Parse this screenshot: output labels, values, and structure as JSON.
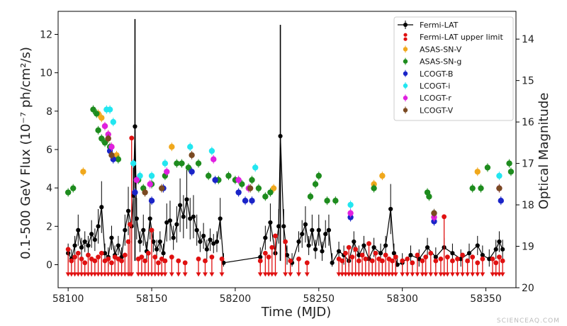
{
  "watermark": "SCIENCEAQ.COM",
  "chart_data": {
    "type": "scatter",
    "xlabel": "Time (MJD)",
    "ylabel_left": "0.1-500 GeV Flux (10⁻⁷ ph/cm²/s)",
    "ylabel_right": "Optical Magnitude",
    "xlim": [
      58094,
      58368
    ],
    "ylim_left": [
      -1.2,
      13.2
    ],
    "ylim_right": [
      20,
      13.33
    ],
    "x_ticks": [
      58100,
      58150,
      58200,
      58250,
      58300,
      58350
    ],
    "y_ticks_left": [
      0,
      2,
      4,
      6,
      8,
      10,
      12
    ],
    "y_ticks_right": [
      14,
      15,
      16,
      17,
      18,
      19,
      20
    ],
    "legend_position": "top-right",
    "series": [
      {
        "name": "Fermi-LAT",
        "color": "#000000",
        "axis": "left",
        "kind": "line-points",
        "points": [
          [
            58100,
            0.6
          ],
          [
            58102,
            0.3
          ],
          [
            58104,
            1.0
          ],
          [
            58106,
            1.8
          ],
          [
            58108,
            0.9
          ],
          [
            58110,
            1.2
          ],
          [
            58112,
            1.0
          ],
          [
            58114,
            1.6
          ],
          [
            58116,
            1.3
          ],
          [
            58118,
            2.0
          ],
          [
            58120,
            3.0
          ],
          [
            58122,
            0.6
          ],
          [
            58124,
            0.4
          ],
          [
            58126,
            1.4
          ],
          [
            58128,
            0.5
          ],
          [
            58130,
            1.0
          ],
          [
            58132,
            0.4
          ],
          [
            58134,
            1.8
          ],
          [
            58136,
            2.8
          ],
          [
            58138,
            2.0
          ],
          [
            58139,
            3.6
          ],
          [
            58140,
            7.2
          ],
          [
            58141,
            2.4
          ],
          [
            58143,
            1.2
          ],
          [
            58145,
            1.8
          ],
          [
            58147,
            0.7
          ],
          [
            58149,
            2.4
          ],
          [
            58151,
            1.2
          ],
          [
            58153,
            0.8
          ],
          [
            58155,
            1.2
          ],
          [
            58157,
            0.6
          ],
          [
            58159,
            2.2
          ],
          [
            58161,
            2.3
          ],
          [
            58163,
            1.4
          ],
          [
            58165,
            2.1
          ],
          [
            58167,
            3.1
          ],
          [
            58169,
            2.5
          ],
          [
            58171,
            3.4
          ],
          [
            58173,
            2.4
          ],
          [
            58175,
            2.5
          ],
          [
            58177,
            1.8
          ],
          [
            58179,
            1.2
          ],
          [
            58181,
            1.5
          ],
          [
            58183,
            0.8
          ],
          [
            58185,
            1.3
          ],
          [
            58187,
            1.1
          ],
          [
            58189,
            1.2
          ],
          [
            58191,
            2.4
          ],
          [
            58193,
            0.1
          ],
          [
            58215,
            0.4
          ],
          [
            58218,
            1.4
          ],
          [
            58221,
            2.2
          ],
          [
            58224,
            0.6
          ],
          [
            58226,
            2.0
          ],
          [
            58227,
            6.7
          ],
          [
            58229,
            2.0
          ],
          [
            58231,
            0.5
          ],
          [
            58234,
            0.1
          ],
          [
            58238,
            1.2
          ],
          [
            58240,
            1.6
          ],
          [
            58242,
            2.1
          ],
          [
            58244,
            1.0
          ],
          [
            58246,
            1.8
          ],
          [
            58248,
            0.8
          ],
          [
            58250,
            1.8
          ],
          [
            58252,
            0.7
          ],
          [
            58254,
            1.6
          ],
          [
            58256,
            1.8
          ],
          [
            58258,
            0.1
          ],
          [
            58262,
            0.7
          ],
          [
            58265,
            0.5
          ],
          [
            58268,
            0.2
          ],
          [
            58271,
            1.2
          ],
          [
            58274,
            0.5
          ],
          [
            58277,
            1.0
          ],
          [
            58280,
            0.3
          ],
          [
            58283,
            0.9
          ],
          [
            58287,
            0.6
          ],
          [
            58290,
            1.0
          ],
          [
            58293,
            2.9
          ],
          [
            58295,
            0.6
          ],
          [
            58297,
            0.0
          ],
          [
            58300,
            0.1
          ],
          [
            58305,
            0.5
          ],
          [
            58310,
            0.3
          ],
          [
            58315,
            0.9
          ],
          [
            58320,
            0.4
          ],
          [
            58325,
            0.9
          ],
          [
            58330,
            0.6
          ],
          [
            58335,
            0.3
          ],
          [
            58340,
            0.6
          ],
          [
            58345,
            1.0
          ],
          [
            58348,
            0.5
          ],
          [
            58352,
            0.3
          ],
          [
            58356,
            0.8
          ],
          [
            58358,
            1.2
          ],
          [
            58360,
            0.8
          ]
        ],
        "spikes": [
          [
            58140,
            12.8
          ],
          [
            58227,
            12.5
          ]
        ]
      },
      {
        "name": "Fermi-LAT upper limit",
        "color": "#e01010",
        "axis": "left",
        "kind": "upper-limit",
        "points": [
          [
            58100,
            0.8
          ],
          [
            58102,
            0.2
          ],
          [
            58104,
            0.4
          ],
          [
            58106,
            0.6
          ],
          [
            58108,
            0.3
          ],
          [
            58110,
            0.1
          ],
          [
            58112,
            0.5
          ],
          [
            58114,
            0.3
          ],
          [
            58116,
            0.2
          ],
          [
            58118,
            0.4
          ],
          [
            58120,
            0.6
          ],
          [
            58122,
            0.2
          ],
          [
            58124,
            0.3
          ],
          [
            58126,
            0.1
          ],
          [
            58128,
            0.4
          ],
          [
            58130,
            0.3
          ],
          [
            58132,
            0.2
          ],
          [
            58134,
            0.5
          ],
          [
            58136,
            1.2
          ],
          [
            58137,
            2.1
          ],
          [
            58138,
            6.6
          ],
          [
            58142,
            0.3
          ],
          [
            58144,
            0.4
          ],
          [
            58146,
            0.2
          ],
          [
            58148,
            0.6
          ],
          [
            58150,
            1.8
          ],
          [
            58152,
            0.4
          ],
          [
            58154,
            0.1
          ],
          [
            58156,
            0.3
          ],
          [
            58158,
            0.2
          ],
          [
            58162,
            0.4
          ],
          [
            58166,
            0.2
          ],
          [
            58170,
            0.1
          ],
          [
            58178,
            0.3
          ],
          [
            58182,
            0.2
          ],
          [
            58186,
            0.4
          ],
          [
            58192,
            0.3
          ],
          [
            58215,
            0.2
          ],
          [
            58218,
            0.6
          ],
          [
            58220,
            0.4
          ],
          [
            58222,
            0.9
          ],
          [
            58224,
            1.5
          ],
          [
            58230,
            1.2
          ],
          [
            58233,
            0.2
          ],
          [
            58238,
            0.3
          ],
          [
            58243,
            0.1
          ],
          [
            58262,
            0.3
          ],
          [
            58264,
            0.2
          ],
          [
            58266,
            0.6
          ],
          [
            58268,
            0.9
          ],
          [
            58270,
            0.4
          ],
          [
            58272,
            0.8
          ],
          [
            58274,
            0.2
          ],
          [
            58276,
            0.5
          ],
          [
            58278,
            0.3
          ],
          [
            58280,
            1.1
          ],
          [
            58282,
            0.2
          ],
          [
            58284,
            0.6
          ],
          [
            58286,
            0.3
          ],
          [
            58288,
            0.2
          ],
          [
            58290,
            0.5
          ],
          [
            58292,
            0.3
          ],
          [
            58294,
            0.2
          ],
          [
            58296,
            0.4
          ],
          [
            58300,
            0.2
          ],
          [
            58303,
            0.3
          ],
          [
            58306,
            0.1
          ],
          [
            58309,
            0.5
          ],
          [
            58312,
            0.2
          ],
          [
            58314,
            0.4
          ],
          [
            58317,
            0.6
          ],
          [
            58320,
            0.2
          ],
          [
            58323,
            0.3
          ],
          [
            58325,
            2.5
          ],
          [
            58327,
            0.4
          ],
          [
            58330,
            0.2
          ],
          [
            58333,
            0.3
          ],
          [
            58336,
            0.5
          ],
          [
            58339,
            0.2
          ],
          [
            58342,
            0.4
          ],
          [
            58345,
            0.1
          ],
          [
            58348,
            0.3
          ],
          [
            58354,
            0.3
          ],
          [
            58356,
            0.1
          ],
          [
            58358,
            0.4
          ],
          [
            58360,
            0.2
          ]
        ]
      },
      {
        "name": "ASAS-SN-V",
        "color": "#f0a81c",
        "axis": "right",
        "points": [
          [
            58109,
            17.2
          ],
          [
            58118,
            15.8
          ],
          [
            58120,
            15.9
          ],
          [
            58122,
            16.1
          ],
          [
            58124,
            16.3
          ],
          [
            58126,
            16.6
          ],
          [
            58129,
            16.8
          ],
          [
            58162,
            16.6
          ],
          [
            58223,
            17.6
          ],
          [
            58283,
            17.5
          ],
          [
            58288,
            17.3
          ],
          [
            58345,
            17.2
          ]
        ]
      },
      {
        "name": "ASAS-SN-g",
        "color": "#1e8c1e",
        "axis": "right",
        "points": [
          [
            58100,
            17.7
          ],
          [
            58103,
            17.6
          ],
          [
            58115,
            15.7
          ],
          [
            58117,
            15.8
          ],
          [
            58118,
            16.2
          ],
          [
            58120,
            16.4
          ],
          [
            58122,
            16.5
          ],
          [
            58125,
            16.6
          ],
          [
            58130,
            16.9
          ],
          [
            58142,
            17.4
          ],
          [
            58145,
            17.6
          ],
          [
            58150,
            17.5
          ],
          [
            58158,
            17.3
          ],
          [
            58165,
            17.0
          ],
          [
            58168,
            17.0
          ],
          [
            58172,
            17.1
          ],
          [
            58178,
            17.0
          ],
          [
            58184,
            17.3
          ],
          [
            58190,
            17.4
          ],
          [
            58196,
            17.3
          ],
          [
            58200,
            17.4
          ],
          [
            58204,
            17.5
          ],
          [
            58210,
            17.4
          ],
          [
            58214,
            17.6
          ],
          [
            58218,
            17.8
          ],
          [
            58221,
            17.7
          ],
          [
            58245,
            17.8
          ],
          [
            58248,
            17.5
          ],
          [
            58250,
            17.3
          ],
          [
            58255,
            17.9
          ],
          [
            58260,
            17.9
          ],
          [
            58283,
            17.6
          ],
          [
            58315,
            17.7
          ],
          [
            58316,
            17.8
          ],
          [
            58342,
            17.6
          ],
          [
            58347,
            17.6
          ],
          [
            58351,
            17.1
          ],
          [
            58364,
            17.0
          ],
          [
            58365,
            17.2
          ]
        ]
      },
      {
        "name": "LCOGT-B",
        "color": "#1a24c8",
        "axis": "right",
        "points": [
          [
            58125,
            16.7
          ],
          [
            58127,
            16.9
          ],
          [
            58140,
            17.7
          ],
          [
            58150,
            17.9
          ],
          [
            58157,
            17.6
          ],
          [
            58174,
            17.2
          ],
          [
            58188,
            17.4
          ],
          [
            58202,
            17.7
          ],
          [
            58206,
            17.9
          ],
          [
            58210,
            17.9
          ],
          [
            58269,
            18.3
          ],
          [
            58319,
            18.4
          ],
          [
            58359,
            17.9
          ]
        ]
      },
      {
        "name": "LCOGT-i",
        "color": "#22e6f0",
        "axis": "right",
        "points": [
          [
            58123,
            15.7
          ],
          [
            58125,
            15.7
          ],
          [
            58127,
            16.0
          ],
          [
            58139,
            17.0
          ],
          [
            58143,
            17.3
          ],
          [
            58150,
            17.3
          ],
          [
            58158,
            17.0
          ],
          [
            58173,
            16.6
          ],
          [
            58186,
            16.7
          ],
          [
            58212,
            17.1
          ],
          [
            58269,
            18.0
          ],
          [
            58319,
            18.2
          ],
          [
            58358,
            17.3
          ]
        ]
      },
      {
        "name": "LCOGT-r",
        "color": "#e020e0",
        "axis": "right",
        "points": [
          [
            58122,
            16.1
          ],
          [
            58124,
            16.3
          ],
          [
            58126,
            16.6
          ],
          [
            58141,
            17.4
          ],
          [
            58149,
            17.5
          ],
          [
            58159,
            17.2
          ],
          [
            58187,
            16.9
          ],
          [
            58202,
            17.4
          ],
          [
            58208,
            17.6
          ],
          [
            58269,
            18.2
          ],
          [
            58319,
            18.3
          ],
          [
            58358,
            17.6
          ]
        ]
      },
      {
        "name": "LCOGT-V",
        "color": "#7a4a22",
        "axis": "right",
        "points": [
          [
            58124,
            16.4
          ],
          [
            58126,
            16.8
          ],
          [
            58146,
            17.7
          ],
          [
            58156,
            17.6
          ],
          [
            58174,
            16.8
          ],
          [
            58209,
            17.6
          ],
          [
            58319,
            18.2
          ],
          [
            58358,
            17.6
          ]
        ]
      }
    ]
  }
}
